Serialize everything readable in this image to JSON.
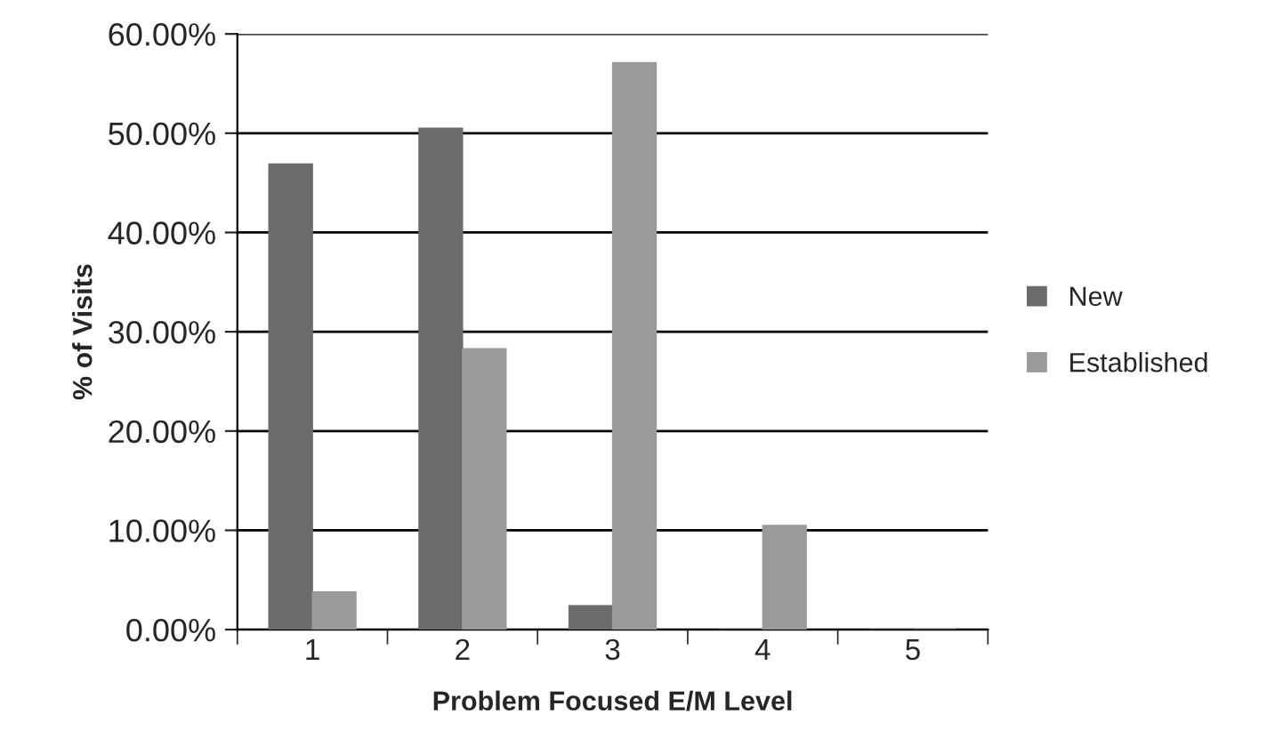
{
  "chart_data": {
    "type": "bar",
    "xlabel": "Problem Focused E/M Level",
    "ylabel": "% of Visits",
    "categories": [
      "1",
      "2",
      "3",
      "4",
      "5"
    ],
    "series": [
      {
        "name": "New",
        "color": "#6b6b6b",
        "values": [
          46.9,
          50.5,
          2.4,
          0,
          0
        ]
      },
      {
        "name": "Established",
        "color": "#9a9a9a",
        "values": [
          3.8,
          28.3,
          57.1,
          10.5,
          0
        ]
      }
    ],
    "ylim": [
      0,
      60
    ],
    "yticks": [
      {
        "value": 0,
        "label": "0.00%"
      },
      {
        "value": 10,
        "label": "10.00%"
      },
      {
        "value": 20,
        "label": "20.00%"
      },
      {
        "value": 30,
        "label": "30.00%"
      },
      {
        "value": 40,
        "label": "40.00%"
      },
      {
        "value": 50,
        "label": "50.00%"
      },
      {
        "value": 60,
        "label": "60.00%"
      }
    ],
    "grid": "y",
    "legend": "right"
  }
}
